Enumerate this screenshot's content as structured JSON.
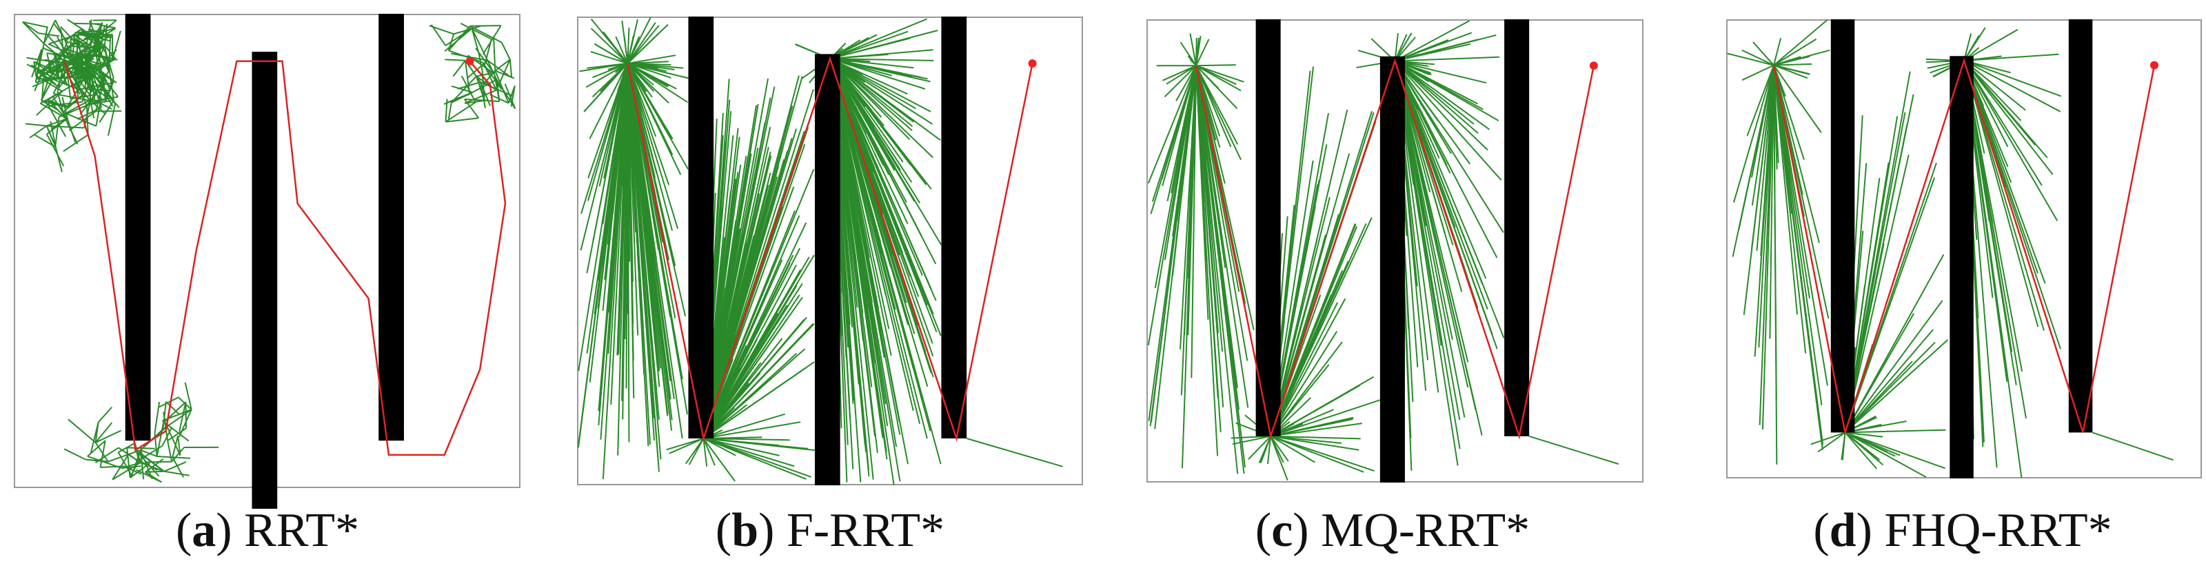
{
  "panels": [
    {
      "caption": {
        "open": "(",
        "letter": "a",
        "close": ") ",
        "title": "RRT*"
      }
    },
    {
      "caption": {
        "open": "(",
        "letter": "b",
        "close": ") ",
        "title": "F-RRT*"
      }
    },
    {
      "caption": {
        "open": "(",
        "letter": "c",
        "close": ") ",
        "title": "MQ-RRT*"
      }
    },
    {
      "caption": {
        "open": "(",
        "letter": "d",
        "close": ") ",
        "title": "FHQ-RRT*"
      }
    }
  ]
}
